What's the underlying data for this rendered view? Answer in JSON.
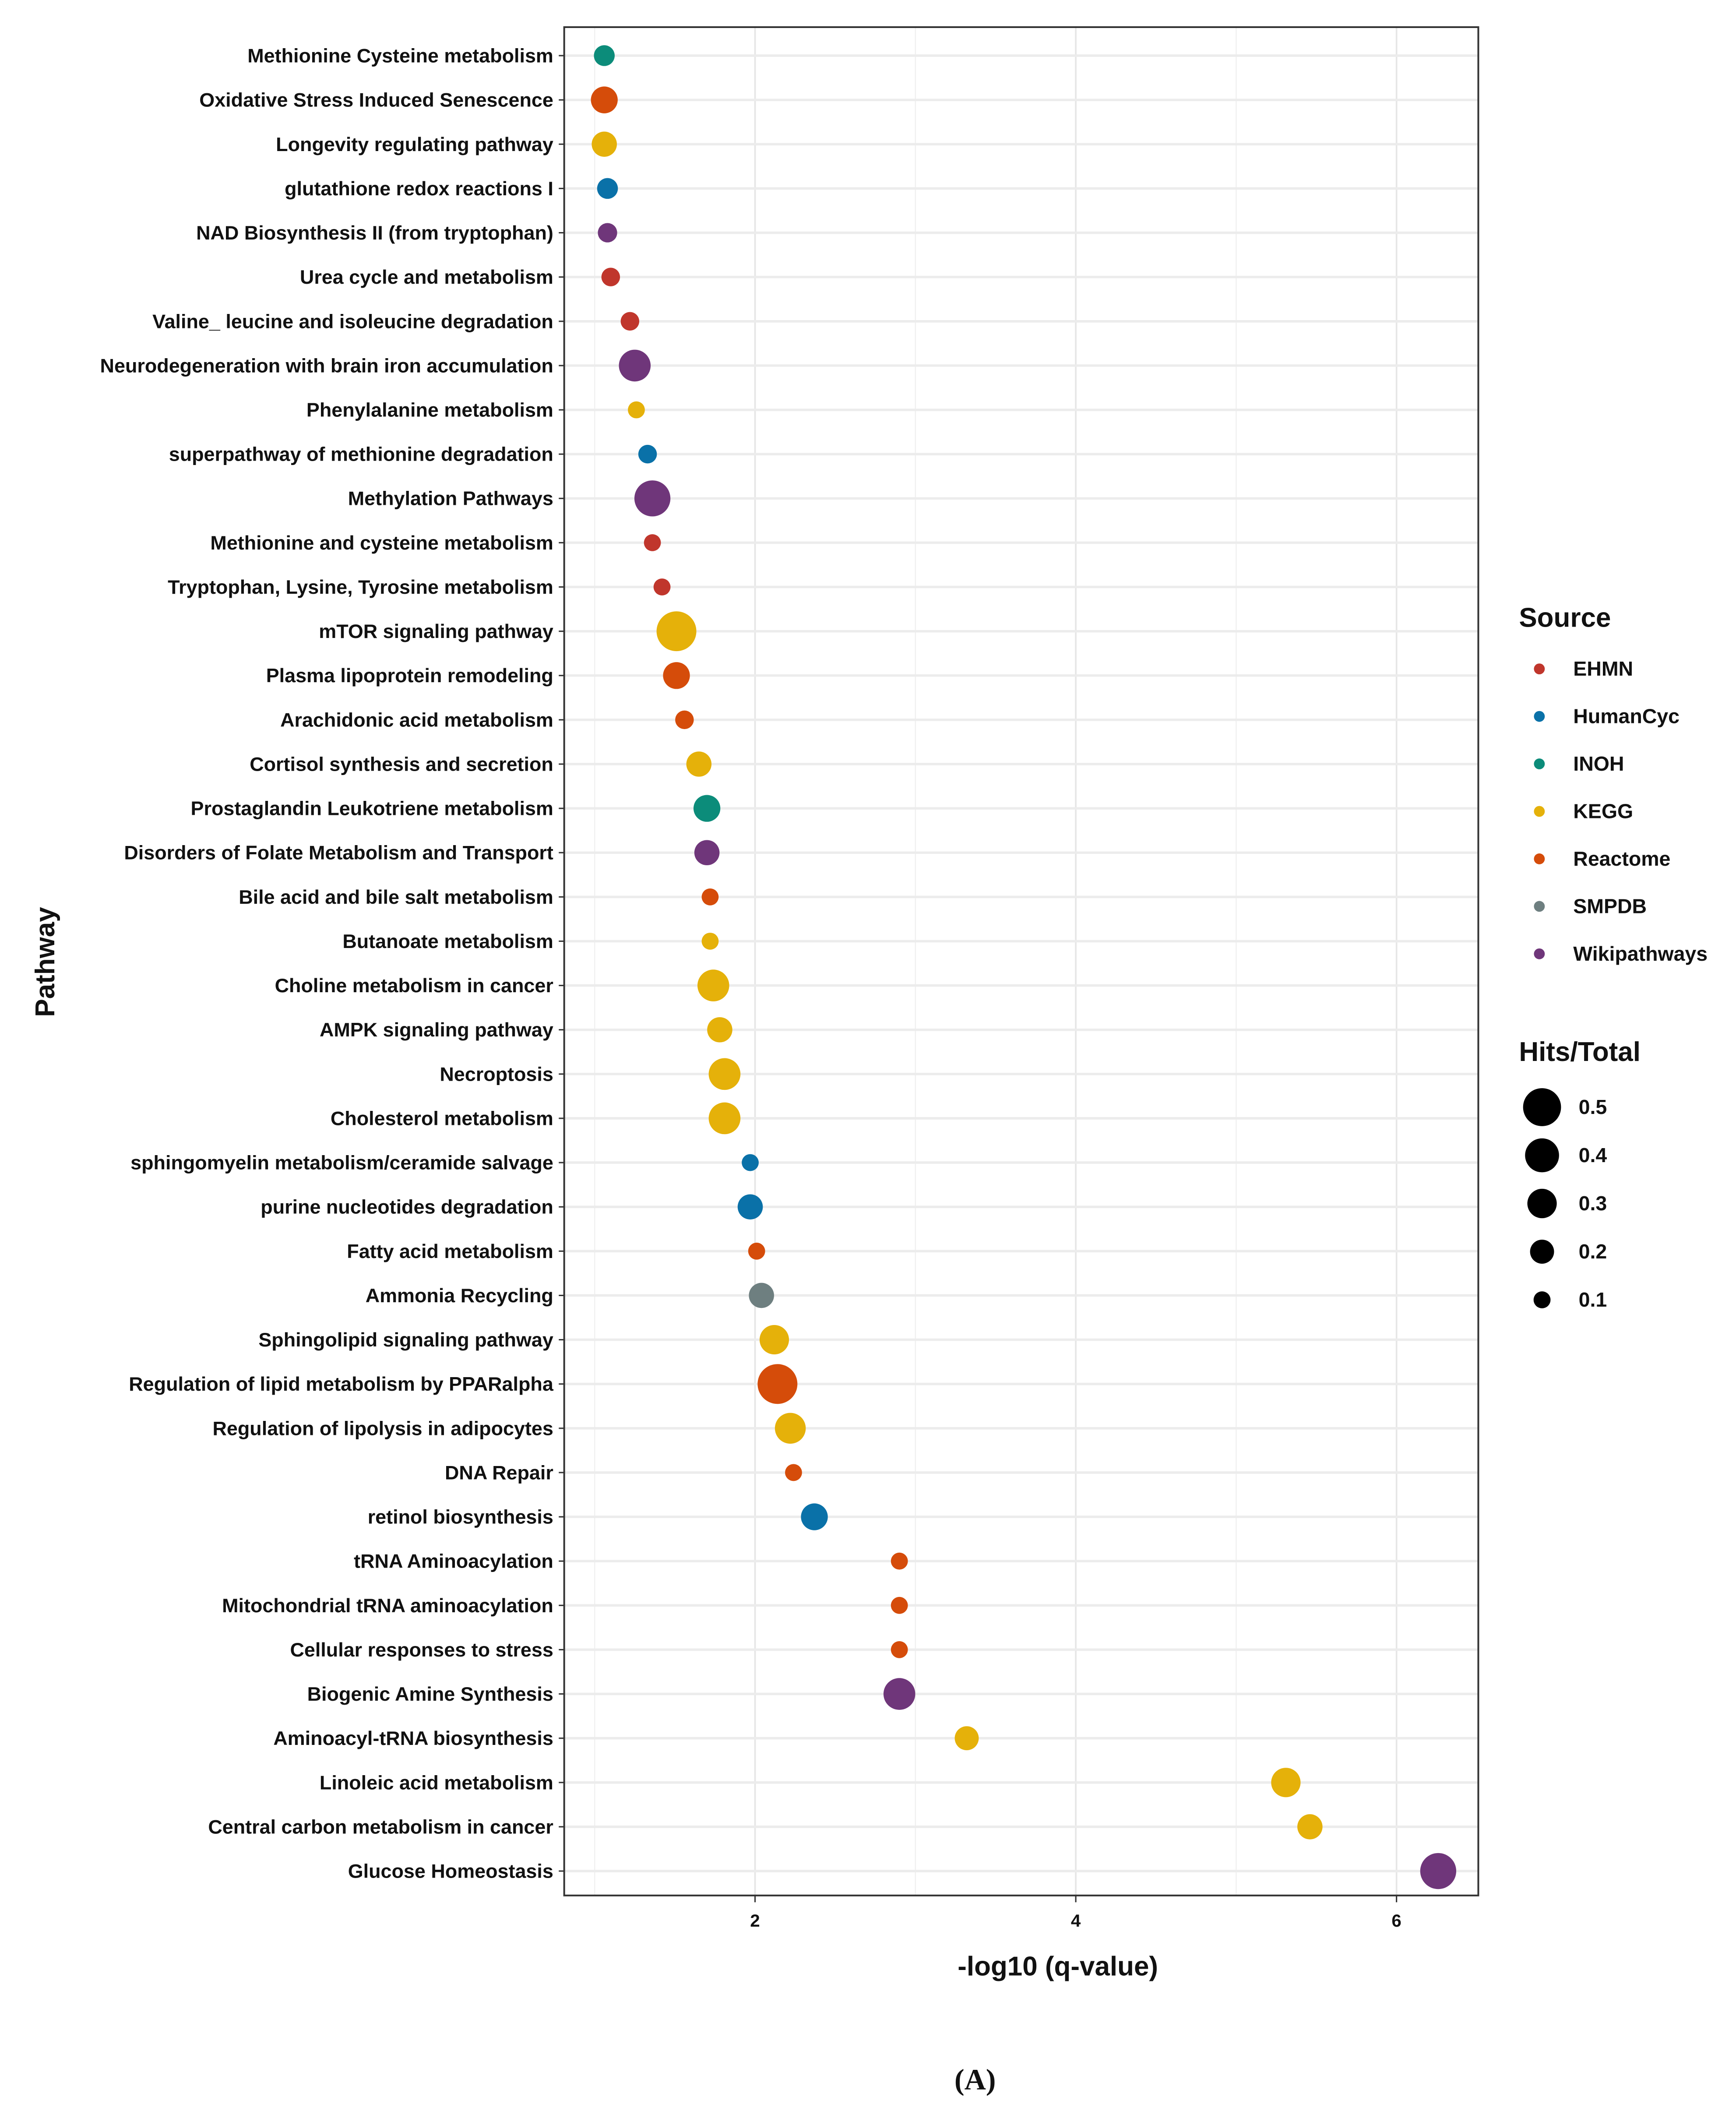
{
  "chart_data": {
    "type": "scatter",
    "xlabel": "-log10 (q-value)",
    "ylabel": "Pathway",
    "caption": "(A)",
    "xlim": [
      0.81,
      6.51
    ],
    "xticks": [
      2,
      4,
      6
    ],
    "grid": true,
    "legend_placement": "right",
    "color_legend_title": "Source",
    "size_legend_title": "Hits/Total",
    "sources": [
      {
        "name": "EHMN",
        "color": "#C0362C"
      },
      {
        "name": "HumanCyc",
        "color": "#0A71A8"
      },
      {
        "name": "INOH",
        "color": "#0C8C7A"
      },
      {
        "name": "KEGG",
        "color": "#E5B10A"
      },
      {
        "name": "Reactome",
        "color": "#D54C0A"
      },
      {
        "name": "SMPDB",
        "color": "#6E7F80"
      },
      {
        "name": "Wikipathways",
        "color": "#6F367A"
      }
    ],
    "size_breaks": [
      "0.5",
      "0.4",
      "0.3",
      "0.2",
      "0.1"
    ],
    "points": [
      {
        "pathway": "Methionine Cysteine metabolism",
        "x": 1.06,
        "source": "INOH",
        "hits_total": 0.15
      },
      {
        "pathway": "Oxidative Stress Induced Senescence",
        "x": 1.06,
        "source": "Reactome",
        "hits_total": 0.25
      },
      {
        "pathway": "Longevity regulating pathway",
        "x": 1.06,
        "source": "KEGG",
        "hits_total": 0.22
      },
      {
        "pathway": "glutathione redox reactions I",
        "x": 1.08,
        "source": "HumanCyc",
        "hits_total": 0.15
      },
      {
        "pathway": "NAD Biosynthesis II (from tryptophan)",
        "x": 1.08,
        "source": "Wikipathways",
        "hits_total": 0.13
      },
      {
        "pathway": "Urea cycle and metabolism",
        "x": 1.1,
        "source": "EHMN",
        "hits_total": 0.12
      },
      {
        "pathway": "Valine_ leucine and isoleucine degradation",
        "x": 1.22,
        "source": "EHMN",
        "hits_total": 0.12
      },
      {
        "pathway": "Neurodegeneration with brain iron accumulation",
        "x": 1.25,
        "source": "Wikipathways",
        "hits_total": 0.35
      },
      {
        "pathway": "Phenylalanine metabolism",
        "x": 1.26,
        "source": "KEGG",
        "hits_total": 0.1
      },
      {
        "pathway": "superpathway of methionine degradation",
        "x": 1.33,
        "source": "HumanCyc",
        "hits_total": 0.12
      },
      {
        "pathway": "Methylation Pathways",
        "x": 1.36,
        "source": "Wikipathways",
        "hits_total": 0.45
      },
      {
        "pathway": "Methionine and cysteine metabolism",
        "x": 1.36,
        "source": "EHMN",
        "hits_total": 0.1
      },
      {
        "pathway": "Tryptophan, Lysine, Tyrosine metabolism",
        "x": 1.42,
        "source": "EHMN",
        "hits_total": 0.1
      },
      {
        "pathway": "mTOR signaling pathway",
        "x": 1.51,
        "source": "KEGG",
        "hits_total": 0.55
      },
      {
        "pathway": "Plasma lipoprotein remodeling",
        "x": 1.51,
        "source": "Reactome",
        "hits_total": 0.25
      },
      {
        "pathway": "Arachidonic acid metabolism",
        "x": 1.56,
        "source": "Reactome",
        "hits_total": 0.12
      },
      {
        "pathway": "Cortisol synthesis and secretion",
        "x": 1.65,
        "source": "KEGG",
        "hits_total": 0.22
      },
      {
        "pathway": "Prostaglandin Leukotriene metabolism",
        "x": 1.7,
        "source": "INOH",
        "hits_total": 0.25
      },
      {
        "pathway": "Disorders of Folate Metabolism and Transport",
        "x": 1.7,
        "source": "Wikipathways",
        "hits_total": 0.22
      },
      {
        "pathway": "Bile acid and bile salt metabolism",
        "x": 1.72,
        "source": "Reactome",
        "hits_total": 0.1
      },
      {
        "pathway": "Butanoate metabolism",
        "x": 1.72,
        "source": "KEGG",
        "hits_total": 0.1
      },
      {
        "pathway": "Choline metabolism in cancer",
        "x": 1.74,
        "source": "KEGG",
        "hits_total": 0.35
      },
      {
        "pathway": "AMPK signaling pathway",
        "x": 1.78,
        "source": "KEGG",
        "hits_total": 0.22
      },
      {
        "pathway": "Necroptosis",
        "x": 1.81,
        "source": "KEGG",
        "hits_total": 0.35
      },
      {
        "pathway": "Cholesterol metabolism",
        "x": 1.81,
        "source": "KEGG",
        "hits_total": 0.35
      },
      {
        "pathway": "sphingomyelin metabolism/ceramide salvage",
        "x": 1.97,
        "source": "HumanCyc",
        "hits_total": 0.1
      },
      {
        "pathway": "purine nucleotides degradation",
        "x": 1.97,
        "source": "HumanCyc",
        "hits_total": 0.22
      },
      {
        "pathway": "Fatty acid metabolism",
        "x": 2.01,
        "source": "Reactome",
        "hits_total": 0.1
      },
      {
        "pathway": "Ammonia Recycling",
        "x": 2.04,
        "source": "SMPDB",
        "hits_total": 0.22
      },
      {
        "pathway": "Sphingolipid signaling pathway",
        "x": 2.12,
        "source": "KEGG",
        "hits_total": 0.3
      },
      {
        "pathway": "Regulation of lipid metabolism by PPARalpha",
        "x": 2.14,
        "source": "Reactome",
        "hits_total": 0.55
      },
      {
        "pathway": "Regulation of lipolysis in adipocytes",
        "x": 2.22,
        "source": "KEGG",
        "hits_total": 0.33
      },
      {
        "pathway": "DNA Repair",
        "x": 2.24,
        "source": "Reactome",
        "hits_total": 0.1
      },
      {
        "pathway": "retinol biosynthesis",
        "x": 2.37,
        "source": "HumanCyc",
        "hits_total": 0.25
      },
      {
        "pathway": "tRNA Aminoacylation",
        "x": 2.9,
        "source": "Reactome",
        "hits_total": 0.1
      },
      {
        "pathway": "Mitochondrial tRNA aminoacylation",
        "x": 2.9,
        "source": "Reactome",
        "hits_total": 0.1
      },
      {
        "pathway": "Cellular responses to stress",
        "x": 2.9,
        "source": "Reactome",
        "hits_total": 0.1
      },
      {
        "pathway": "Biogenic Amine Synthesis",
        "x": 2.9,
        "source": "Wikipathways",
        "hits_total": 0.35
      },
      {
        "pathway": "Aminoacyl-tRNA biosynthesis",
        "x": 3.32,
        "source": "KEGG",
        "hits_total": 0.2
      },
      {
        "pathway": "Linoleic acid metabolism",
        "x": 5.31,
        "source": "KEGG",
        "hits_total": 0.3
      },
      {
        "pathway": "Central carbon metabolism in cancer",
        "x": 5.46,
        "source": "KEGG",
        "hits_total": 0.22
      },
      {
        "pathway": "Glucose Homeostasis",
        "x": 6.26,
        "source": "Wikipathways",
        "hits_total": 0.45
      }
    ]
  }
}
